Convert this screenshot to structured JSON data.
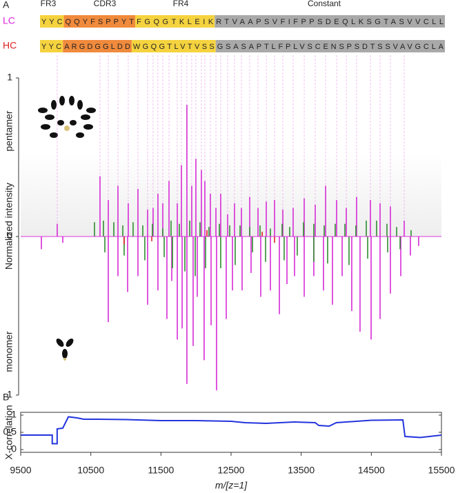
{
  "panel_labels": [
    "A",
    "B"
  ],
  "regions": [
    "FR3",
    "CDR3",
    "FR4",
    "Constant"
  ],
  "sequences": [
    {
      "label": "LC",
      "label_color": "#e020e0",
      "segments": [
        {
          "text": "YYC",
          "color": "#f5d33f"
        },
        {
          "text": "QQYFSPPYT",
          "color": "#f08a3c"
        },
        {
          "text": "FGQGTKLEIK",
          "color": "#f5d33f"
        },
        {
          "text": "RTVAAPSVFIFPPSDEQLKSGTASVVCLL",
          "color": "#a9a9a9"
        }
      ]
    },
    {
      "label": "HC",
      "label_color": "#e02020",
      "segments": [
        {
          "text": "YYC",
          "color": "#f5d33f"
        },
        {
          "text": "ARGDGGLDD",
          "color": "#f08a3c"
        },
        {
          "text": "WGQGTLVTVSS",
          "color": "#f5d33f"
        },
        {
          "text": "GSASAPTLFPLVSCENSPSDTSSVAVGCLA",
          "color": "#a9a9a9"
        }
      ]
    }
  ],
  "chart_data": [
    {
      "type": "stick",
      "ylabel": "Normalized intensity",
      "annotations": [
        "pentamer",
        "monomer"
      ],
      "xlim": [
        9500,
        15500
      ],
      "ylim": [
        -1,
        1
      ],
      "yticks": [
        {
          "value": -1,
          "label": "1"
        },
        0,
        1
      ],
      "series": [
        {
          "color": "#d62ad6",
          "x": [
            10021,
            10631,
            10749,
            10887,
            11034,
            11172,
            11310,
            11388,
            11457,
            11526,
            11615,
            11733,
            11792,
            11870,
            11939,
            11998,
            12077,
            12126,
            12205,
            12284,
            12352,
            12451,
            12549,
            12648,
            12766,
            12884,
            13002,
            13120,
            13238,
            13385,
            13543,
            13700,
            13848,
            14005,
            14143,
            14290,
            14487,
            14625,
            14772,
            14969
          ],
          "values": [
            0.08,
            0.38,
            0.23,
            0.32,
            0.21,
            0.3,
            0.17,
            0.18,
            0.27,
            0.21,
            0.35,
            0.21,
            0.45,
            0.83,
            0.32,
            0.49,
            0.42,
            0.35,
            0.27,
            0.18,
            0.27,
            0.14,
            0.21,
            0.18,
            0.25,
            0.18,
            0.22,
            0.23,
            0.17,
            0.18,
            0.24,
            0.2,
            0.32,
            0.23,
            0.18,
            0.25,
            0.23,
            0.21,
            0.19,
            0.1
          ]
        },
        {
          "color": "#d62ad6",
          "x": [
            9795,
            10100,
            10749,
            10887,
            11025,
            11172,
            11310,
            11457,
            11585,
            11654,
            11733,
            11802,
            11870,
            11959,
            12018,
            12116,
            12215,
            12293,
            12431,
            12520,
            12657,
            12785,
            12923,
            13061,
            13189,
            13297,
            13405,
            13543,
            13680,
            13818,
            13946,
            14084,
            14221,
            14339,
            14497,
            14625,
            14772,
            14920,
            15057,
            15175
          ],
          "values": [
            -0.08,
            -0.04,
            -0.54,
            -0.25,
            -0.35,
            -0.25,
            -0.43,
            -0.34,
            -0.52,
            -0.28,
            -0.65,
            -0.58,
            -0.93,
            -0.69,
            -0.38,
            -0.78,
            -0.56,
            -0.97,
            -0.52,
            -0.34,
            -0.34,
            -0.23,
            -0.38,
            -0.34,
            -0.49,
            -0.3,
            -0.25,
            -0.38,
            -0.25,
            -0.34,
            -0.43,
            -0.25,
            -0.47,
            -0.6,
            -0.65,
            -0.52,
            -0.36,
            -0.25,
            -0.12,
            -0.06
          ]
        },
        {
          "color": "#2e8b2e",
          "x": [
            10552,
            10680,
            10828,
            10956,
            11103,
            11241,
            11379,
            11526,
            11644,
            11762,
            11910,
            12057,
            12185,
            12333,
            12480,
            12628,
            12766,
            12913,
            13061,
            13228,
            13336,
            13533,
            13680,
            13828,
            13985,
            14123,
            14280,
            14428,
            14575,
            14723,
            14861,
            15067
          ],
          "values": [
            0.09,
            0.1,
            0.09,
            0.07,
            0.09,
            0.07,
            0.08,
            0.05,
            0.1,
            0.08,
            0.1,
            0.09,
            0.06,
            0.08,
            0.07,
            0.07,
            0.06,
            0.07,
            0.05,
            0.08,
            0.06,
            0.09,
            0.08,
            0.07,
            0.08,
            0.08,
            0.07,
            0.1,
            0.1,
            0.08,
            0.06,
            0.04
          ]
        },
        {
          "color": "#2e8b2e",
          "x": [
            10700,
            10975,
            11270,
            11546,
            11664,
            11841,
            11989,
            12136,
            12352,
            12559,
            12805,
            12992,
            13257,
            13444,
            13680,
            13877,
            14182,
            14448,
            14733,
            14910
          ],
          "values": [
            -0.1,
            -0.12,
            -0.15,
            -0.13,
            -0.2,
            -0.22,
            -0.25,
            -0.2,
            -0.2,
            -0.18,
            -0.1,
            -0.16,
            -0.15,
            -0.12,
            -0.16,
            -0.17,
            -0.18,
            -0.14,
            -0.1,
            -0.08
          ]
        },
        {
          "color": "#e02020",
          "x": [
            10975,
            11369,
            12156,
            12943,
            13120
          ],
          "values": [
            -0.05,
            -0.03,
            0.04,
            0.03,
            -0.04
          ]
        }
      ]
    },
    {
      "type": "line",
      "ylabel": "X-correlation",
      "xlabel": "m/[z=1]",
      "xlim": [
        9500,
        15500
      ],
      "ylim": [
        0,
        1
      ],
      "xticks": [
        9500,
        10500,
        11500,
        12500,
        13500,
        14500,
        15500
      ],
      "yticks": [
        0,
        0.5,
        1
      ],
      "series": [
        {
          "color": "#2233dd",
          "x": [
            9500,
            9950,
            9950,
            10020,
            10020,
            10100,
            10180,
            10300,
            10400,
            10600,
            11000,
            11500,
            12000,
            12500,
            12700,
            13000,
            13400,
            13700,
            13750,
            13900,
            14000,
            14500,
            14950,
            14980,
            15200,
            15500
          ],
          "values": [
            0.42,
            0.42,
            0.17,
            0.17,
            0.6,
            0.62,
            0.95,
            0.92,
            0.88,
            0.88,
            0.87,
            0.84,
            0.84,
            0.82,
            0.78,
            0.76,
            0.8,
            0.78,
            0.7,
            0.68,
            0.78,
            0.85,
            0.86,
            0.38,
            0.35,
            0.42
          ]
        }
      ]
    }
  ]
}
